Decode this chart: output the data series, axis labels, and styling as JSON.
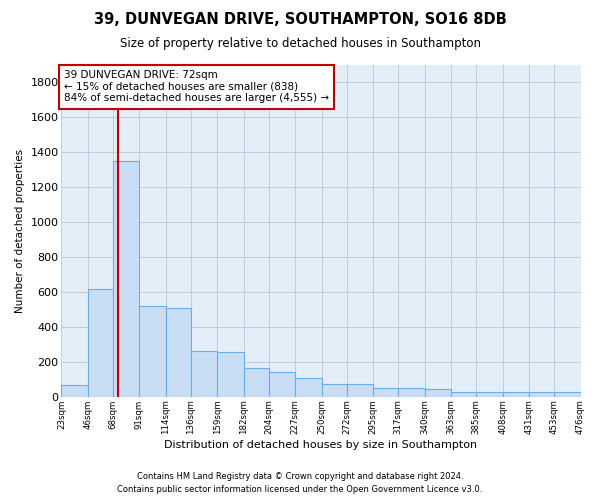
{
  "title": "39, DUNVEGAN DRIVE, SOUTHAMPTON, SO16 8DB",
  "subtitle": "Size of property relative to detached houses in Southampton",
  "xlabel": "Distribution of detached houses by size in Southampton",
  "ylabel": "Number of detached properties",
  "footnote1": "Contains HM Land Registry data © Crown copyright and database right 2024.",
  "footnote2": "Contains public sector information licensed under the Open Government Licence v3.0.",
  "annotation_title": "39 DUNVEGAN DRIVE: 72sqm",
  "annotation_line1": "← 15% of detached houses are smaller (838)",
  "annotation_line2": "84% of semi-detached houses are larger (4,555) →",
  "property_line_x": 72,
  "bar_edges": [
    23,
    46,
    68,
    91,
    114,
    136,
    159,
    182,
    204,
    227,
    250,
    272,
    295,
    317,
    340,
    363,
    385,
    408,
    431,
    453,
    476
  ],
  "bar_heights": [
    65,
    620,
    1350,
    520,
    510,
    260,
    255,
    165,
    140,
    110,
    75,
    75,
    50,
    48,
    45,
    30,
    30,
    25,
    28,
    25,
    0
  ],
  "bar_color": "#c9ddf5",
  "bar_edge_color": "#6aaee8",
  "property_line_color": "#c00000",
  "annotation_box_edge": "#c00000",
  "bg_axes": "#e4eef8",
  "bg_fig": "#ffffff",
  "grid_color": "#b8c8d8",
  "ylim": [
    0,
    1900
  ],
  "yticks": [
    0,
    200,
    400,
    600,
    800,
    1000,
    1200,
    1400,
    1600,
    1800
  ],
  "tick_labels": [
    "23sqm",
    "46sqm",
    "68sqm",
    "91sqm",
    "114sqm",
    "136sqm",
    "159sqm",
    "182sqm",
    "204sqm",
    "227sqm",
    "250sqm",
    "272sqm",
    "295sqm",
    "317sqm",
    "340sqm",
    "363sqm",
    "385sqm",
    "408sqm",
    "431sqm",
    "453sqm",
    "476sqm"
  ]
}
